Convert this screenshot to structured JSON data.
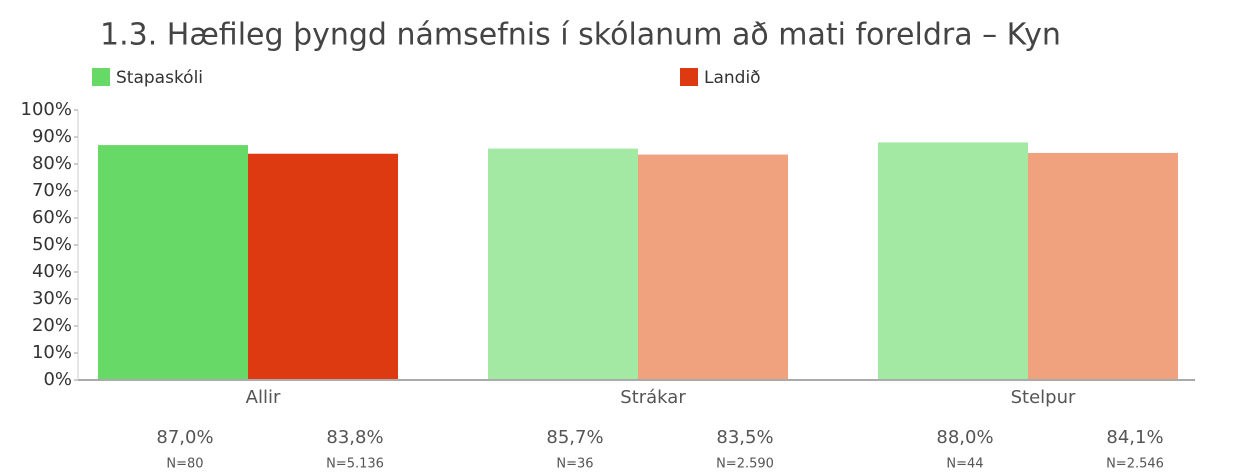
{
  "chart_data": {
    "type": "bar",
    "title": "1.3. Hæfileg þyngd námsefnis í skólanum að mati foreldra – Kyn",
    "categories": [
      "Allir",
      "Strákar",
      "Stelpur"
    ],
    "series": [
      {
        "name": "Stapaskóli",
        "color": "#66d966",
        "colors": [
          "#66d966",
          "#a3e9a3",
          "#a3e9a3"
        ],
        "values": [
          87.0,
          85.7,
          88.0
        ],
        "value_labels": [
          "87,0%",
          "85,7%",
          "88,0%"
        ],
        "sample_labels": [
          "N=80",
          "N=36",
          "N=44"
        ]
      },
      {
        "name": "Landið",
        "color": "#dd3a12",
        "colors": [
          "#dd3a12",
          "#f0a27e",
          "#f0a27e"
        ],
        "values": [
          83.8,
          83.5,
          84.1
        ],
        "value_labels": [
          "83,8%",
          "83,5%",
          "84,1%"
        ],
        "sample_labels": [
          "N=5.136",
          "N=2.590",
          "N=2.546"
        ]
      }
    ],
    "ylim": [
      0,
      100
    ],
    "yticks": [
      {
        "value": 0,
        "label": "0%"
      },
      {
        "value": 10,
        "label": "10%"
      },
      {
        "value": 20,
        "label": "20%"
      },
      {
        "value": 30,
        "label": "30%"
      },
      {
        "value": 40,
        "label": "40%"
      },
      {
        "value": 50,
        "label": "50%"
      },
      {
        "value": 60,
        "label": "60%"
      },
      {
        "value": 70,
        "label": "70%"
      },
      {
        "value": 80,
        "label": "80%"
      },
      {
        "value": 90,
        "label": "90%"
      },
      {
        "value": 100,
        "label": "100%"
      }
    ],
    "grid": false
  }
}
